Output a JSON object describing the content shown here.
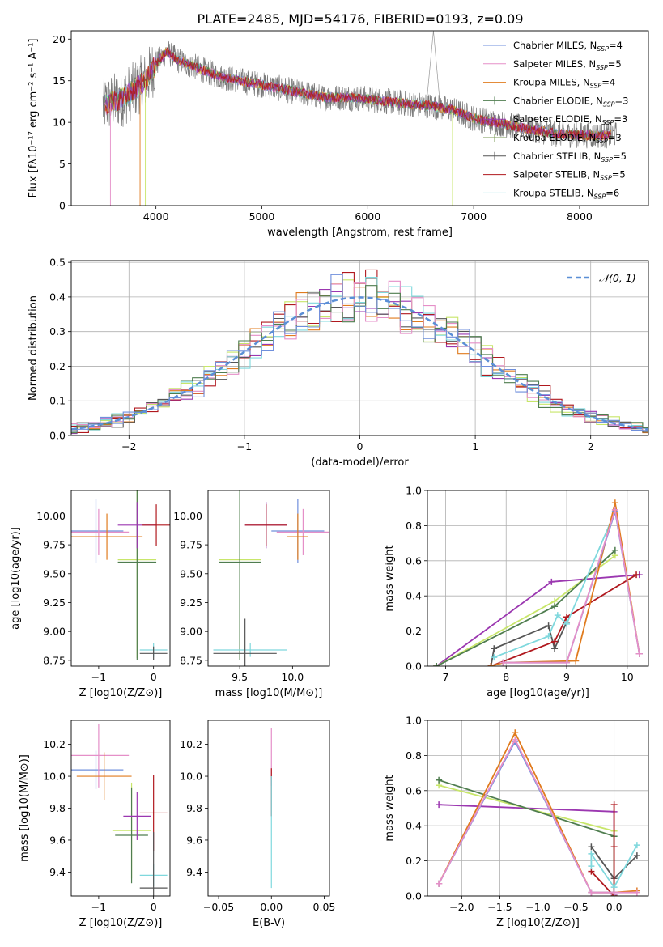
{
  "figure_title": "PLATE=2485, MJD=54176, FIBERID=0193, z=0.09",
  "colors": {
    "blue": "#6f8fdc",
    "pink": "#e58fc8",
    "orange": "#e07b1e",
    "green": "#4f7d4f",
    "purple": "#9b37b0",
    "darkgreen": "#7a9a55",
    "gray": "#555555",
    "red": "#b0181e",
    "cyan": "#7fd8dd",
    "lime": "#c8e66a",
    "normal": "#5b8fd6"
  },
  "chart_data": [
    {
      "id": "spectrum",
      "type": "line",
      "xlabel": "wavelength [Angstrom, rest frame]",
      "ylabel": "Flux [fλ10⁻¹⁷ erg cm⁻² s⁻¹ A⁻¹]",
      "xlim": [
        3200,
        8650
      ],
      "ylim": [
        0,
        21
      ],
      "xticks": [
        4000,
        5000,
        6000,
        7000,
        8000
      ],
      "yticks": [
        0,
        5,
        10,
        15,
        20
      ],
      "legend_placement": "upper right",
      "legend": [
        "Chabrier MILES, N_SSP=4",
        "Salpeter MILES, N_SSP=5",
        "Kroupa MILES, N_SSP=4",
        "Chabrier ELODIE, N_SSP=3",
        "Salpeter ELODIE, N_SSP=3",
        "Kroupa ELODIE, N_SSP=3",
        "Chabrier STELIB, N_SSP=5",
        "Salpeter STELIB, N_SSP=5",
        "Kroupa STELIB, N_SSP=6"
      ],
      "continuum": {
        "x": [
          3500,
          3600,
          3700,
          3800,
          3900,
          4000,
          4100,
          4200,
          4400,
          4600,
          4800,
          5000,
          5200,
          5400,
          5600,
          5800,
          6000,
          6200,
          6400,
          6600,
          6800,
          7000,
          7200,
          7400,
          7600,
          7800,
          8000,
          8200,
          8350
        ],
        "y": [
          12,
          12.5,
          13,
          14,
          15,
          17,
          18.5,
          17.5,
          16.5,
          15.5,
          15,
          14.5,
          14,
          13.5,
          13,
          13,
          12.8,
          12.5,
          12.2,
          12,
          11.5,
          10.5,
          10,
          9.5,
          9,
          8.6,
          8.5,
          8.4,
          8.5
        ]
      }
    },
    {
      "id": "residuals",
      "type": "line",
      "xlabel": "(data-model)/error",
      "ylabel": "Normed distribution",
      "xlim": [
        -2.5,
        2.5
      ],
      "ylim": [
        0,
        0.505
      ],
      "xticks": [
        -2,
        -1,
        0,
        1,
        2
      ],
      "yticks": [
        0.0,
        0.1,
        0.2,
        0.3,
        0.4,
        0.5
      ],
      "grid": true,
      "legend_placement": "upper right",
      "legend": [
        "𝒩(0, 1)"
      ],
      "normal_curve": {
        "mean": 0,
        "sigma": 1
      }
    },
    {
      "id": "age_vs_Z",
      "type": "scatter",
      "xlabel": "Z [log10(Z/Z⊙)]",
      "ylabel": "age  [log10(age/yr)]",
      "xlim": [
        -1.5,
        0.3
      ],
      "ylim": [
        8.7,
        10.22
      ],
      "xticks": [
        -1,
        0
      ],
      "yticks": [
        8.75,
        9.0,
        9.25,
        9.5,
        9.75,
        10.0
      ],
      "points": [
        {
          "x": -1.05,
          "y": 9.87,
          "xerr": 0.5,
          "yerr": 0.28,
          "color": "blue"
        },
        {
          "x": -1.0,
          "y": 9.86,
          "xerr": 0.55,
          "yerr": 0.2,
          "color": "pink"
        },
        {
          "x": -0.85,
          "y": 9.82,
          "xerr": 0.65,
          "yerr": 0.2,
          "color": "orange"
        },
        {
          "x": -0.3,
          "y": 9.62,
          "xerr": 0.35,
          "yerr": 0.85,
          "color": "lime"
        },
        {
          "x": -0.3,
          "y": 9.6,
          "xerr": 0.35,
          "yerr": 0.85,
          "color": "green"
        },
        {
          "x": -0.3,
          "y": 9.92,
          "xerr": 0.35,
          "yerr": 0.2,
          "color": "purple"
        },
        {
          "x": 0.05,
          "y": 9.92,
          "xerr": 0.25,
          "yerr": 0.18,
          "color": "red"
        },
        {
          "x": 0.0,
          "y": 8.84,
          "xerr": 0.25,
          "yerr": 0.06,
          "color": "cyan"
        },
        {
          "x": 0.0,
          "y": 8.81,
          "xerr": 0.25,
          "yerr": 0.06,
          "color": "gray"
        }
      ]
    },
    {
      "id": "age_vs_mass",
      "type": "scatter",
      "xlabel": "mass [log10(M/M⊙)]",
      "ylabel": "",
      "xlim": [
        9.2,
        10.35
      ],
      "ylim": [
        8.7,
        10.22
      ],
      "xticks": [
        9.5,
        10.0
      ],
      "yticks": [
        8.75,
        9.0,
        9.25,
        9.5,
        9.75,
        10.0
      ],
      "points": [
        {
          "x": 10.05,
          "y": 9.87,
          "xerr": 0.25,
          "yerr": 0.28,
          "color": "blue"
        },
        {
          "x": 10.1,
          "y": 9.86,
          "xerr": 0.25,
          "yerr": 0.2,
          "color": "pink"
        },
        {
          "x": 10.05,
          "y": 9.82,
          "xerr": 0.1,
          "yerr": 0.2,
          "color": "orange"
        },
        {
          "x": 9.5,
          "y": 9.62,
          "xerr": 0.2,
          "yerr": 0.85,
          "color": "lime"
        },
        {
          "x": 9.5,
          "y": 9.6,
          "xerr": 0.2,
          "yerr": 0.85,
          "color": "green"
        },
        {
          "x": 9.75,
          "y": 9.92,
          "xerr": 0.2,
          "yerr": 0.2,
          "color": "purple"
        },
        {
          "x": 9.75,
          "y": 9.92,
          "xerr": 0.2,
          "yerr": 0.18,
          "color": "red"
        },
        {
          "x": 9.6,
          "y": 8.84,
          "xerr": 0.35,
          "yerr": 0.06,
          "color": "cyan"
        },
        {
          "x": 9.55,
          "y": 8.81,
          "xerr": 0.3,
          "yerr": 0.3,
          "color": "gray"
        }
      ]
    },
    {
      "id": "weight_vs_age",
      "type": "line",
      "xlabel": "age  [log10(age/yr)]",
      "ylabel": "mass weight",
      "xlim": [
        6.7,
        10.35
      ],
      "ylim": [
        0,
        1.0
      ],
      "xticks": [
        7,
        8,
        9,
        10
      ],
      "yticks": [
        0.0,
        0.2,
        0.4,
        0.6,
        0.8,
        1.0
      ],
      "grid": true,
      "series": [
        {
          "color": "purple",
          "x": [
            6.85,
            8.75,
            10.2
          ],
          "y": [
            0.0,
            0.48,
            0.52
          ]
        },
        {
          "color": "lime",
          "x": [
            6.85,
            8.8,
            9.8
          ],
          "y": [
            0.0,
            0.37,
            0.63
          ]
        },
        {
          "color": "green",
          "x": [
            6.85,
            8.8,
            9.8
          ],
          "y": [
            0.0,
            0.34,
            0.66
          ]
        },
        {
          "color": "gray",
          "x": [
            7.75,
            7.8,
            8.7,
            8.8,
            9.0
          ],
          "y": [
            0.0,
            0.1,
            0.23,
            0.1,
            0.25
          ]
        },
        {
          "color": "red",
          "x": [
            7.75,
            8.8,
            9.0,
            10.15
          ],
          "y": [
            0.0,
            0.14,
            0.28,
            0.52
          ]
        },
        {
          "color": "cyan",
          "x": [
            7.8,
            8.7,
            8.85,
            9.0,
            9.8
          ],
          "y": [
            0.05,
            0.17,
            0.29,
            0.24,
            0.88
          ]
        },
        {
          "color": "orange",
          "x": [
            7.75,
            7.95,
            9.15,
            9.8,
            10.2
          ],
          "y": [
            0.0,
            0.02,
            0.03,
            0.93,
            0.07
          ]
        },
        {
          "color": "blue",
          "x": [
            7.95,
            9.0,
            9.8,
            10.2
          ],
          "y": [
            0.02,
            0.02,
            0.88,
            0.07
          ]
        },
        {
          "color": "pink",
          "x": [
            7.95,
            9.0,
            9.8,
            10.2
          ],
          "y": [
            0.02,
            0.02,
            0.89,
            0.07
          ]
        }
      ]
    },
    {
      "id": "mass_vs_Z",
      "type": "scatter",
      "xlabel": "Z [log10(Z/Z⊙)]",
      "ylabel": "mass [log10(M/M⊙)]",
      "xlim": [
        -1.5,
        0.3
      ],
      "ylim": [
        9.25,
        10.35
      ],
      "xticks": [
        -1,
        0
      ],
      "yticks": [
        9.4,
        9.6,
        9.8,
        10.0,
        10.2
      ],
      "points": [
        {
          "x": -1.05,
          "y": 10.04,
          "xerr": 0.5,
          "yerr": 0.12,
          "color": "blue"
        },
        {
          "x": -1.0,
          "y": 10.13,
          "xerr": 0.55,
          "yerr": 0.2,
          "color": "pink"
        },
        {
          "x": -0.9,
          "y": 10.0,
          "xerr": 0.5,
          "yerr": 0.15,
          "color": "orange"
        },
        {
          "x": -0.4,
          "y": 9.66,
          "xerr": 0.35,
          "yerr": 0.3,
          "color": "lime"
        },
        {
          "x": -0.4,
          "y": 9.63,
          "xerr": 0.3,
          "yerr": 0.3,
          "color": "green"
        },
        {
          "x": -0.3,
          "y": 9.75,
          "xerr": 0.25,
          "yerr": 0.15,
          "color": "purple"
        },
        {
          "x": 0.0,
          "y": 9.77,
          "xerr": 0.25,
          "yerr": 0.24,
          "color": "red"
        },
        {
          "x": 0.0,
          "y": 9.38,
          "xerr": 0.25,
          "yerr": 0.07,
          "color": "cyan"
        },
        {
          "x": 0.0,
          "y": 9.3,
          "xerr": 0.25,
          "yerr": 0.35,
          "color": "gray"
        }
      ]
    },
    {
      "id": "mass_vs_EBV",
      "type": "scatter",
      "xlabel": "E(B-V)",
      "ylabel": "",
      "xlim": [
        -0.06,
        0.055
      ],
      "ylim": [
        9.25,
        10.35
      ],
      "xticks": [
        -0.05,
        0.0,
        0.05
      ],
      "yticks": [
        9.4,
        9.6,
        9.8,
        10.0,
        10.2
      ],
      "points": [
        {
          "x": 0.0,
          "y": 10.12,
          "xerr": 0,
          "yerr": 0.18,
          "color": "pink"
        },
        {
          "x": 0.0,
          "y": 9.9,
          "xerr": 0,
          "yerr": 0.15,
          "color": "red"
        },
        {
          "x": 0.0,
          "y": 9.65,
          "xerr": 0,
          "yerr": 0.35,
          "color": "cyan"
        }
      ]
    },
    {
      "id": "weight_vs_Z",
      "type": "line",
      "xlabel": "Z [log10(Z/Z⊙)]",
      "ylabel": "mass weight",
      "xlim": [
        -2.45,
        0.45
      ],
      "ylim": [
        0,
        1.0
      ],
      "xticks": [
        -2.0,
        -1.5,
        -1.0,
        -0.5,
        0.0
      ],
      "yticks": [
        0.0,
        0.2,
        0.4,
        0.6,
        0.8,
        1.0
      ],
      "grid": true,
      "series": [
        {
          "color": "purple",
          "x": [
            -2.3,
            0.0,
            0.0
          ],
          "y": [
            0.52,
            0.48,
            0.01
          ]
        },
        {
          "color": "lime",
          "x": [
            -2.3,
            0.0,
            0.0
          ],
          "y": [
            0.63,
            0.37,
            0.0
          ]
        },
        {
          "color": "green",
          "x": [
            -2.3,
            0.0,
            0.0
          ],
          "y": [
            0.66,
            0.34,
            0.0
          ]
        },
        {
          "color": "gray",
          "x": [
            -0.3,
            0.0,
            0.3
          ],
          "y": [
            0.28,
            0.1,
            0.23
          ]
        },
        {
          "color": "red",
          "x": [
            -0.3,
            0.0,
            0.0,
            0.0
          ],
          "y": [
            0.14,
            0.0,
            0.52,
            0.28
          ]
        },
        {
          "color": "cyan",
          "x": [
            -0.3,
            -0.3,
            0.0,
            0.3
          ],
          "y": [
            0.17,
            0.24,
            0.05,
            0.29
          ]
        },
        {
          "color": "orange",
          "x": [
            -2.3,
            -1.3,
            -0.3,
            0.0,
            0.3
          ],
          "y": [
            0.07,
            0.93,
            0.02,
            0.02,
            0.03
          ]
        },
        {
          "color": "blue",
          "x": [
            -2.3,
            -1.3,
            -0.3,
            0.0
          ],
          "y": [
            0.07,
            0.88,
            0.02,
            0.02
          ]
        },
        {
          "color": "pink",
          "x": [
            -2.3,
            -1.3,
            -0.3,
            0.0,
            0.3
          ],
          "y": [
            0.07,
            0.89,
            0.02,
            0.02,
            0.02
          ]
        }
      ]
    }
  ]
}
